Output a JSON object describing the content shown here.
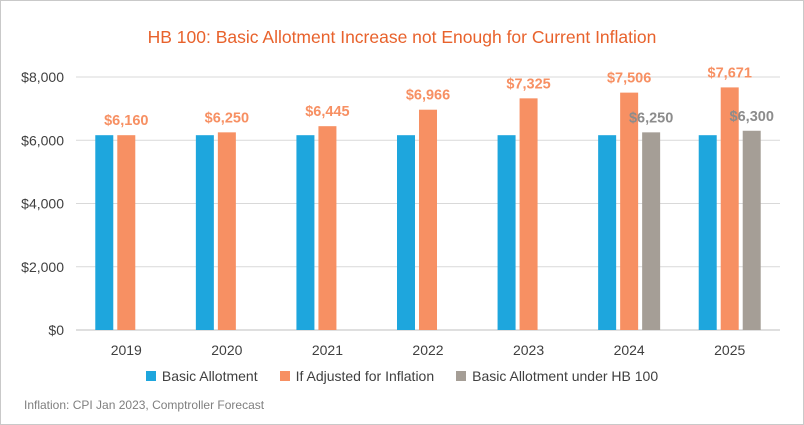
{
  "chart_data": {
    "type": "bar",
    "title": "HB 100: Basic Allotment Increase not Enough for Current Inflation",
    "categories": [
      "2019",
      "2020",
      "2021",
      "2022",
      "2023",
      "2024",
      "2025"
    ],
    "series": [
      {
        "name": "Basic Allotment",
        "color": "#1ea6dd",
        "values": [
          6160,
          6160,
          6160,
          6160,
          6160,
          6160,
          6160
        ],
        "labels": []
      },
      {
        "name": "If Adjusted for Inflation",
        "color": "#f79063",
        "values": [
          6160,
          6250,
          6445,
          6966,
          7325,
          7506,
          7671
        ],
        "labels": [
          "$6,160",
          "$6,250",
          "$6,445",
          "$6,966",
          "$7,325",
          "$7,506",
          "$7,671"
        ]
      },
      {
        "name": "Basic Allotment under HB 100",
        "color": "#a59e96",
        "values": [
          null,
          null,
          null,
          null,
          null,
          6250,
          6300
        ],
        "labels": [
          "",
          "",
          "",
          "",
          "",
          "$6,250",
          "$6,300"
        ]
      }
    ],
    "y_ticks": [
      "$0",
      "$2,000",
      "$4,000",
      "$6,000",
      "$8,000"
    ],
    "ylim": [
      0,
      8000
    ],
    "grid": true,
    "legend_position": "bottom",
    "label_colors": {
      "inflation": "#f79063",
      "hb100": "#8c8c8c"
    }
  },
  "footnote": "Inflation: CPI Jan 2023, Comptroller Forecast"
}
